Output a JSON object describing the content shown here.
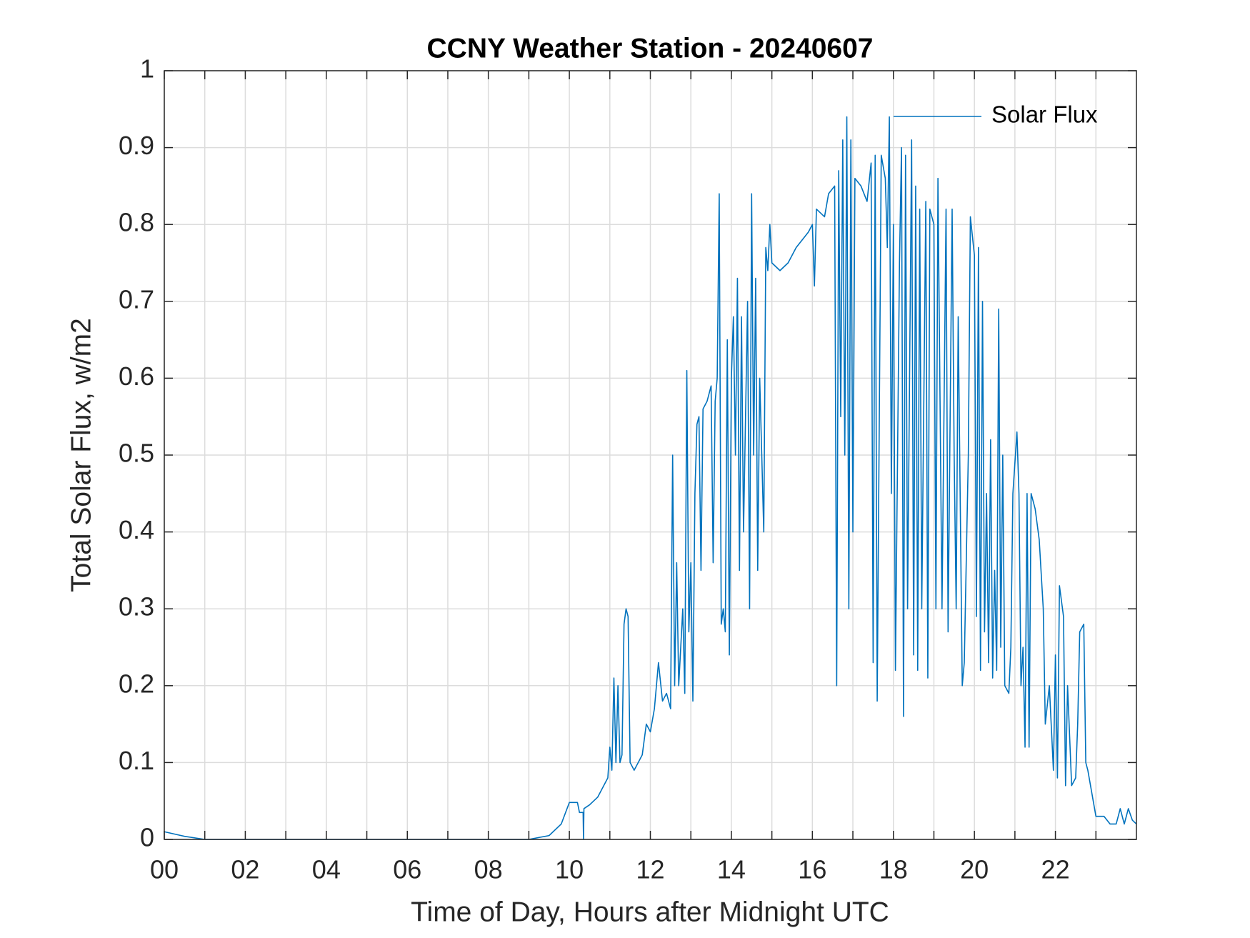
{
  "chart_data": {
    "type": "line",
    "title": "CCNY Weather Station - 20240607",
    "xlabel": "Time of Day, Hours after Midnight UTC",
    "ylabel": "Total Solar Flux, w/m2",
    "xlim": [
      0,
      24
    ],
    "xticks": [
      {
        "value": 0,
        "label": "00"
      },
      {
        "value": 1,
        "label": null
      },
      {
        "value": 2,
        "label": "02"
      },
      {
        "value": 3,
        "label": null
      },
      {
        "value": 4,
        "label": "04"
      },
      {
        "value": 5,
        "label": null
      },
      {
        "value": 6,
        "label": "06"
      },
      {
        "value": 7,
        "label": null
      },
      {
        "value": 8,
        "label": "08"
      },
      {
        "value": 9,
        "label": null
      },
      {
        "value": 10,
        "label": "10"
      },
      {
        "value": 11,
        "label": null
      },
      {
        "value": 12,
        "label": "12"
      },
      {
        "value": 13,
        "label": null
      },
      {
        "value": 14,
        "label": "14"
      },
      {
        "value": 15,
        "label": null
      },
      {
        "value": 16,
        "label": "16"
      },
      {
        "value": 17,
        "label": null
      },
      {
        "value": 18,
        "label": "18"
      },
      {
        "value": 19,
        "label": null
      },
      {
        "value": 20,
        "label": "20"
      },
      {
        "value": 21,
        "label": null
      },
      {
        "value": 22,
        "label": "22"
      },
      {
        "value": 23,
        "label": null
      }
    ],
    "ylim": [
      0,
      1
    ],
    "yticks": [
      0,
      0.1,
      0.2,
      0.3,
      0.4,
      0.5,
      0.6,
      0.7,
      0.8,
      0.9,
      1
    ],
    "grid": true,
    "legend": "upper right",
    "x": [
      0,
      0.5,
      1,
      9,
      9.5,
      9.8,
      10,
      10.2,
      10.25,
      10.34,
      10.35,
      10.36,
      10.5,
      10.7,
      10.85,
      10.95,
      11,
      11.05,
      11.1,
      11.15,
      11.2,
      11.25,
      11.3,
      11.35,
      11.4,
      11.45,
      11.5,
      11.6,
      11.8,
      11.9,
      12,
      12.1,
      12.2,
      12.3,
      12.4,
      12.5,
      12.55,
      12.6,
      12.65,
      12.7,
      12.8,
      12.85,
      12.9,
      12.95,
      13,
      13.05,
      13.1,
      13.15,
      13.2,
      13.25,
      13.3,
      13.4,
      13.5,
      13.55,
      13.6,
      13.65,
      13.7,
      13.75,
      13.8,
      13.85,
      13.9,
      13.95,
      14,
      14.05,
      14.1,
      14.15,
      14.2,
      14.25,
      14.3,
      14.35,
      14.4,
      14.45,
      14.5,
      14.55,
      14.6,
      14.65,
      14.7,
      14.75,
      14.8,
      14.85,
      14.9,
      14.95,
      15,
      15.2,
      15.4,
      15.6,
      15.9,
      16,
      16.05,
      16.1,
      16.3,
      16.4,
      16.55,
      16.6,
      16.65,
      16.7,
      16.75,
      16.8,
      16.85,
      16.9,
      16.95,
      17,
      17.05,
      17.2,
      17.35,
      17.45,
      17.5,
      17.55,
      17.6,
      17.7,
      17.8,
      17.85,
      17.9,
      17.95,
      18,
      18.05,
      18.15,
      18.2,
      18.25,
      18.3,
      18.35,
      18.45,
      18.5,
      18.55,
      18.6,
      18.65,
      18.7,
      18.8,
      18.85,
      18.9,
      19,
      19.05,
      19.1,
      19.2,
      19.3,
      19.35,
      19.45,
      19.5,
      19.55,
      19.6,
      19.7,
      19.75,
      19.85,
      19.9,
      20,
      20.05,
      20.1,
      20.15,
      20.2,
      20.25,
      20.3,
      20.35,
      20.4,
      20.45,
      20.5,
      20.55,
      20.6,
      20.65,
      20.7,
      20.75,
      20.85,
      20.9,
      20.95,
      21.05,
      21.1,
      21.15,
      21.2,
      21.25,
      21.3,
      21.35,
      21.4,
      21.5,
      21.6,
      21.7,
      21.75,
      21.85,
      21.95,
      22,
      22.05,
      22.1,
      22.2,
      22.25,
      22.3,
      22.4,
      22.5,
      22.55,
      22.6,
      22.7,
      22.75,
      22.8,
      22.9,
      23,
      23.2,
      23.35,
      23.5,
      23.6,
      23.7,
      23.8,
      23.9,
      24
    ],
    "series": [
      {
        "name": "Solar Flux",
        "color": "#0072bd",
        "values": [
          0.01,
          0.004,
          0,
          0,
          0.005,
          0.02,
          0.048,
          0.048,
          0.035,
          0.035,
          0,
          0.04,
          0.045,
          0.055,
          0.07,
          0.08,
          0.12,
          0.09,
          0.21,
          0.1,
          0.2,
          0.1,
          0.11,
          0.28,
          0.3,
          0.29,
          0.1,
          0.09,
          0.11,
          0.15,
          0.14,
          0.17,
          0.23,
          0.18,
          0.19,
          0.17,
          0.5,
          0.2,
          0.36,
          0.2,
          0.3,
          0.19,
          0.61,
          0.27,
          0.36,
          0.18,
          0.45,
          0.54,
          0.55,
          0.35,
          0.56,
          0.57,
          0.59,
          0.36,
          0.57,
          0.6,
          0.84,
          0.28,
          0.3,
          0.27,
          0.65,
          0.24,
          0.6,
          0.68,
          0.5,
          0.73,
          0.35,
          0.68,
          0.4,
          0.55,
          0.7,
          0.3,
          0.84,
          0.5,
          0.73,
          0.35,
          0.6,
          0.5,
          0.4,
          0.77,
          0.74,
          0.8,
          0.75,
          0.74,
          0.75,
          0.77,
          0.79,
          0.8,
          0.72,
          0.82,
          0.81,
          0.84,
          0.85,
          0.2,
          0.87,
          0.55,
          0.91,
          0.5,
          0.94,
          0.3,
          0.91,
          0.4,
          0.86,
          0.85,
          0.83,
          0.88,
          0.23,
          0.89,
          0.18,
          0.89,
          0.86,
          0.77,
          0.94,
          0.45,
          0.8,
          0.22,
          0.75,
          0.9,
          0.16,
          0.89,
          0.3,
          0.91,
          0.24,
          0.85,
          0.22,
          0.82,
          0.3,
          0.83,
          0.21,
          0.82,
          0.8,
          0.3,
          0.86,
          0.3,
          0.82,
          0.27,
          0.82,
          0.5,
          0.3,
          0.68,
          0.2,
          0.23,
          0.5,
          0.81,
          0.76,
          0.29,
          0.77,
          0.22,
          0.7,
          0.27,
          0.45,
          0.23,
          0.52,
          0.21,
          0.35,
          0.22,
          0.69,
          0.25,
          0.5,
          0.2,
          0.19,
          0.25,
          0.45,
          0.53,
          0.45,
          0.2,
          0.25,
          0.12,
          0.45,
          0.12,
          0.45,
          0.43,
          0.39,
          0.3,
          0.15,
          0.2,
          0.09,
          0.24,
          0.08,
          0.33,
          0.29,
          0.07,
          0.2,
          0.07,
          0.08,
          0.15,
          0.27,
          0.28,
          0.1,
          0.09,
          0.06,
          0.03,
          0.03,
          0.02,
          0.02,
          0.04,
          0.02,
          0.04,
          0.025,
          0.02
        ]
      }
    ]
  }
}
